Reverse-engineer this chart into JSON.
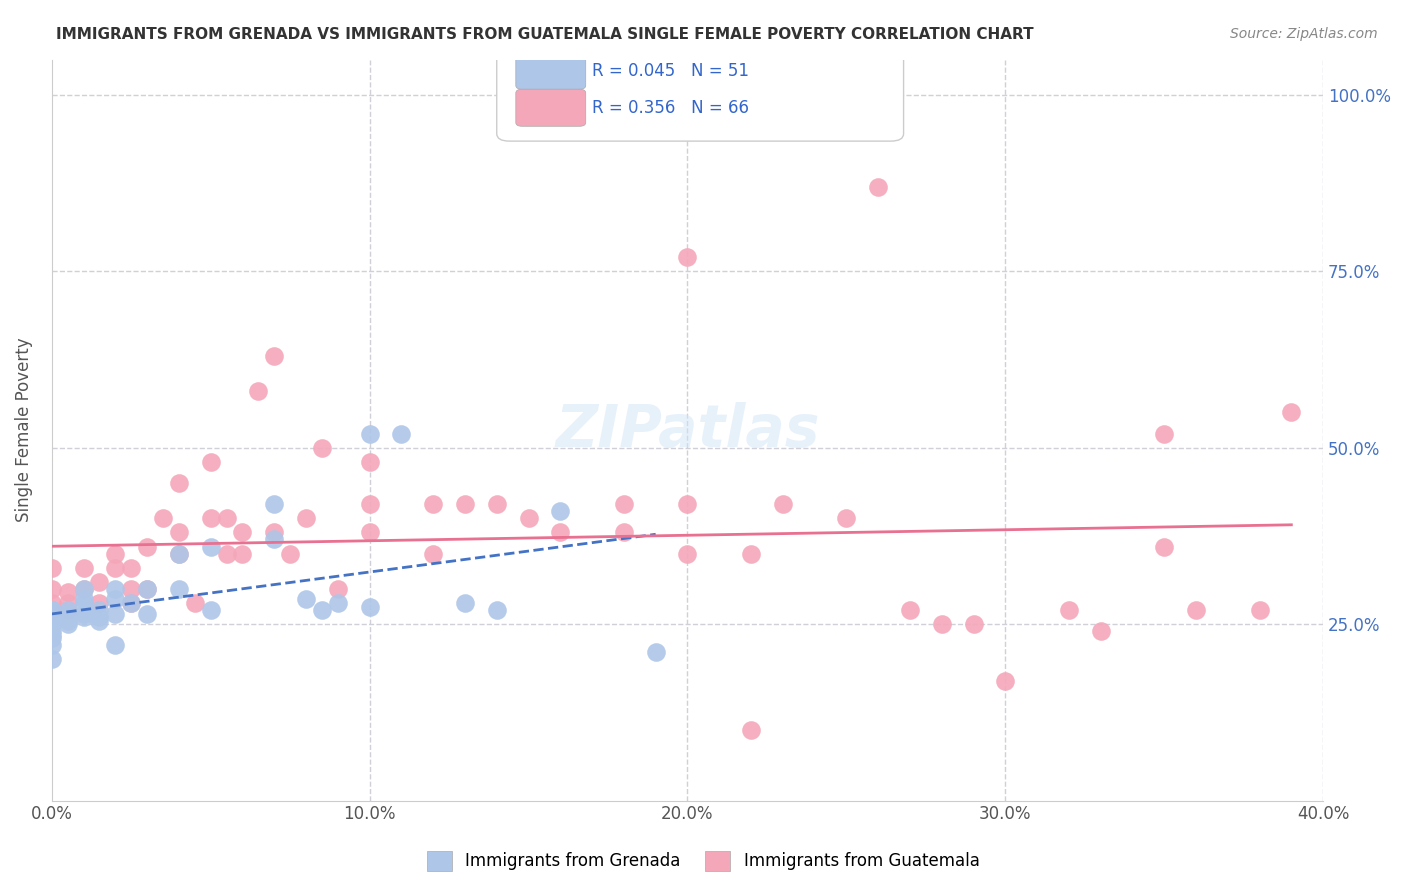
{
  "title": "IMMIGRANTS FROM GRENADA VS IMMIGRANTS FROM GUATEMALA SINGLE FEMALE POVERTY CORRELATION CHART",
  "source": "Source: ZipAtlas.com",
  "ylabel": "Single Female Poverty",
  "xlabel": "",
  "xlim": [
    0.0,
    0.4
  ],
  "ylim": [
    0.0,
    1.05
  ],
  "xtick_labels": [
    "0.0%",
    "10.0%",
    "20.0%",
    "30.0%",
    "40.0%"
  ],
  "xtick_vals": [
    0.0,
    0.1,
    0.2,
    0.3,
    0.4
  ],
  "ytick_labels": [
    "25.0%",
    "50.0%",
    "75.0%",
    "100.0%"
  ],
  "ytick_vals": [
    0.25,
    0.5,
    0.75,
    1.0
  ],
  "ytick_right_labels": [
    "25.0%",
    "50.0%",
    "75.0%",
    "100.0%"
  ],
  "series1_label": "Immigrants from Grenada",
  "series2_label": "Immigrants from Guatemala",
  "series1_R": "0.045",
  "series1_N": "51",
  "series2_R": "0.356",
  "series2_N": "66",
  "series1_color": "#aec6e8",
  "series2_color": "#f4a7b9",
  "series1_line_color": "#4472c4",
  "series2_line_color": "#e87090",
  "legend_color": "#3366cc",
  "watermark": "ZIPatlas",
  "background_color": "#ffffff",
  "grid_color": "#d0d0d8",
  "scatter1_x": [
    0.0,
    0.0,
    0.0,
    0.0,
    0.0,
    0.0,
    0.0,
    0.0,
    0.0,
    0.0,
    0.0,
    0.0,
    0.0,
    0.0,
    0.0,
    0.005,
    0.005,
    0.005,
    0.005,
    0.005,
    0.01,
    0.01,
    0.01,
    0.01,
    0.01,
    0.015,
    0.015,
    0.015,
    0.02,
    0.02,
    0.02,
    0.02,
    0.025,
    0.03,
    0.03,
    0.04,
    0.04,
    0.05,
    0.05,
    0.07,
    0.07,
    0.08,
    0.085,
    0.09,
    0.1,
    0.1,
    0.11,
    0.13,
    0.14,
    0.16,
    0.19
  ],
  "scatter1_y": [
    0.27,
    0.27,
    0.27,
    0.27,
    0.27,
    0.27,
    0.265,
    0.26,
    0.255,
    0.25,
    0.24,
    0.235,
    0.23,
    0.22,
    0.2,
    0.27,
    0.265,
    0.26,
    0.255,
    0.25,
    0.3,
    0.285,
    0.28,
    0.265,
    0.26,
    0.27,
    0.26,
    0.255,
    0.3,
    0.285,
    0.265,
    0.22,
    0.28,
    0.3,
    0.265,
    0.35,
    0.3,
    0.36,
    0.27,
    0.42,
    0.37,
    0.285,
    0.27,
    0.28,
    0.52,
    0.275,
    0.52,
    0.28,
    0.27,
    0.41,
    0.21
  ],
  "scatter2_x": [
    0.0,
    0.0,
    0.0,
    0.0,
    0.005,
    0.005,
    0.005,
    0.01,
    0.01,
    0.015,
    0.015,
    0.02,
    0.02,
    0.025,
    0.025,
    0.025,
    0.03,
    0.03,
    0.035,
    0.04,
    0.04,
    0.04,
    0.045,
    0.05,
    0.05,
    0.055,
    0.055,
    0.06,
    0.06,
    0.065,
    0.07,
    0.07,
    0.075,
    0.08,
    0.085,
    0.09,
    0.1,
    0.1,
    0.1,
    0.12,
    0.12,
    0.13,
    0.14,
    0.15,
    0.16,
    0.18,
    0.18,
    0.2,
    0.2,
    0.22,
    0.23,
    0.25,
    0.26,
    0.27,
    0.28,
    0.29,
    0.3,
    0.32,
    0.33,
    0.35,
    0.35,
    0.36,
    0.38,
    0.39,
    0.2,
    0.22
  ],
  "scatter2_y": [
    0.27,
    0.28,
    0.3,
    0.33,
    0.27,
    0.28,
    0.295,
    0.3,
    0.33,
    0.28,
    0.31,
    0.33,
    0.35,
    0.28,
    0.3,
    0.33,
    0.3,
    0.36,
    0.4,
    0.35,
    0.38,
    0.45,
    0.28,
    0.4,
    0.48,
    0.35,
    0.4,
    0.35,
    0.38,
    0.58,
    0.38,
    0.63,
    0.35,
    0.4,
    0.5,
    0.3,
    0.38,
    0.42,
    0.48,
    0.35,
    0.42,
    0.42,
    0.42,
    0.4,
    0.38,
    0.38,
    0.42,
    0.35,
    0.42,
    0.35,
    0.42,
    0.4,
    0.87,
    0.27,
    0.25,
    0.25,
    0.17,
    0.27,
    0.24,
    0.36,
    0.52,
    0.27,
    0.27,
    0.55,
    0.77,
    0.1
  ]
}
